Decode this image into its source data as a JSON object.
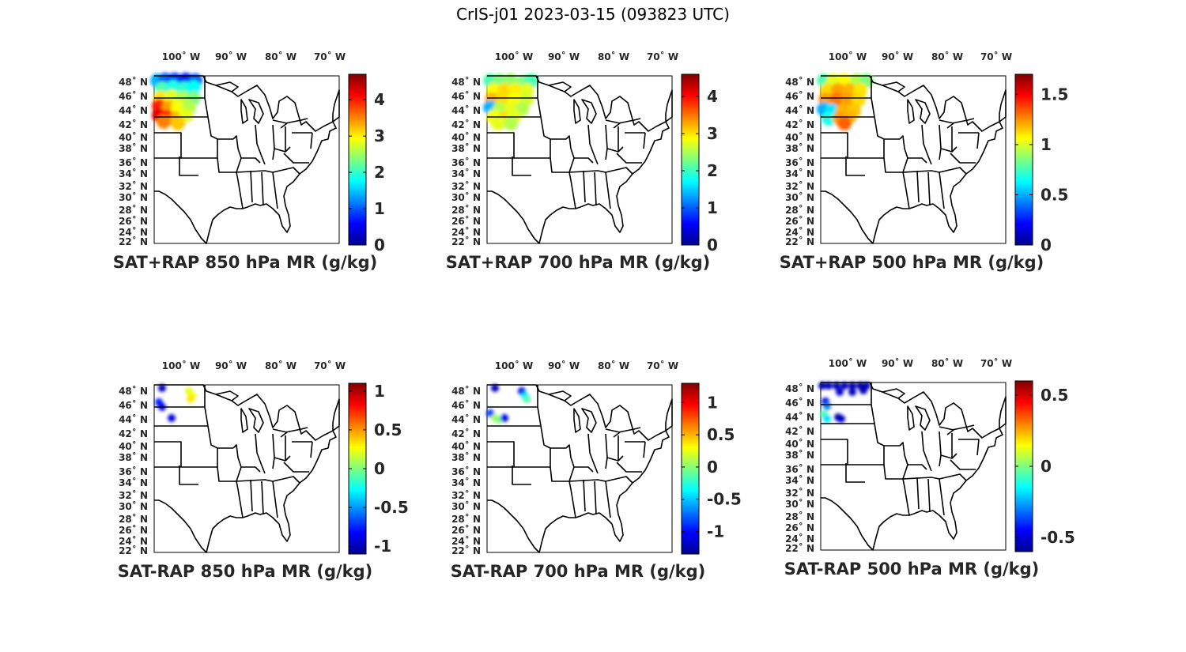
{
  "figure": {
    "title": "CrIS-j01 2023-03-15 (093823 UTC)"
  },
  "map": {
    "lon_ticks": [
      {
        "value": -100,
        "label": "100˚ W"
      },
      {
        "value": -90,
        "label": "90˚ W"
      },
      {
        "value": -80,
        "label": "80˚ W"
      },
      {
        "value": -70,
        "label": "70˚ W"
      }
    ],
    "lat_ticks": [
      {
        "value": 48,
        "label": "48˚ N"
      },
      {
        "value": 46,
        "label": "46˚ N"
      },
      {
        "value": 44,
        "label": "44˚ N"
      },
      {
        "value": 42,
        "label": "42˚ N"
      },
      {
        "value": 40,
        "label": "40˚ N"
      },
      {
        "value": 38,
        "label": "38˚ N"
      },
      {
        "value": 36,
        "label": "36˚ N"
      },
      {
        "value": 34,
        "label": "34˚ N"
      },
      {
        "value": 32,
        "label": "32˚ N"
      },
      {
        "value": 30,
        "label": "30˚ N"
      },
      {
        "value": 28,
        "label": "28˚ N"
      },
      {
        "value": 26,
        "label": "26˚ N"
      },
      {
        "value": 24,
        "label": "24˚ N"
      },
      {
        "value": 22,
        "label": "22˚ N"
      }
    ],
    "lon_range": [
      -105,
      -67
    ],
    "lat_range": [
      22,
      49.5
    ],
    "colormap": "jet",
    "region_outline": "eastern United States state boundaries"
  },
  "panels": [
    {
      "id": "sat-rap-850",
      "title": "SAT+RAP 850 hPa MR (g/kg)",
      "clim": [
        0,
        4.7
      ],
      "cbar_ticks": [
        {
          "value": 0,
          "label": "0"
        },
        {
          "value": 1,
          "label": "1"
        },
        {
          "value": 2,
          "label": "2"
        },
        {
          "value": 3,
          "label": "3"
        },
        {
          "value": 4,
          "label": "4"
        }
      ],
      "field": "swath-850"
    },
    {
      "id": "sat-rap-700",
      "title": "SAT+RAP 700 hPa MR (g/kg)",
      "clim": [
        0,
        4.6
      ],
      "cbar_ticks": [
        {
          "value": 0,
          "label": "0"
        },
        {
          "value": 1,
          "label": "1"
        },
        {
          "value": 2,
          "label": "2"
        },
        {
          "value": 3,
          "label": "3"
        },
        {
          "value": 4,
          "label": "4"
        }
      ],
      "field": "swath-700"
    },
    {
      "id": "sat-rap-500",
      "title": "SAT+RAP 500 hPa MR (g/kg)",
      "clim": [
        0,
        1.7
      ],
      "cbar_ticks": [
        {
          "value": 0,
          "label": "0"
        },
        {
          "value": 0.5,
          "label": "0.5"
        },
        {
          "value": 1,
          "label": "1"
        },
        {
          "value": 1.5,
          "label": "1.5"
        }
      ],
      "field": "swath-500"
    },
    {
      "id": "sat-minus-rap-850",
      "title": "SAT-RAP 850 hPa MR (g/kg)",
      "clim": [
        -1.1,
        1.1
      ],
      "cbar_ticks": [
        {
          "value": -1,
          "label": "-1"
        },
        {
          "value": -0.5,
          "label": "-0.5"
        },
        {
          "value": 0,
          "label": "0"
        },
        {
          "value": 0.5,
          "label": "0.5"
        },
        {
          "value": 1,
          "label": "1"
        }
      ],
      "field": "diff-850"
    },
    {
      "id": "sat-minus-rap-700",
      "title": "SAT-RAP 700 hPa MR (g/kg)",
      "clim": [
        -1.35,
        1.3
      ],
      "cbar_ticks": [
        {
          "value": -1,
          "label": "-1"
        },
        {
          "value": -0.5,
          "label": "-0.5"
        },
        {
          "value": 0,
          "label": "0"
        },
        {
          "value": 0.5,
          "label": "0.5"
        },
        {
          "value": 1,
          "label": "1"
        }
      ],
      "field": "diff-700"
    },
    {
      "id": "sat-minus-rap-500",
      "title": "SAT-RAP 500 hPa MR (g/kg)",
      "clim": [
        -0.6,
        0.6
      ],
      "cbar_ticks": [
        {
          "value": -0.5,
          "label": "-0.5"
        },
        {
          "value": 0,
          "label": "0"
        },
        {
          "value": 0.5,
          "label": "0.5"
        }
      ],
      "field": "diff-500"
    }
  ]
}
